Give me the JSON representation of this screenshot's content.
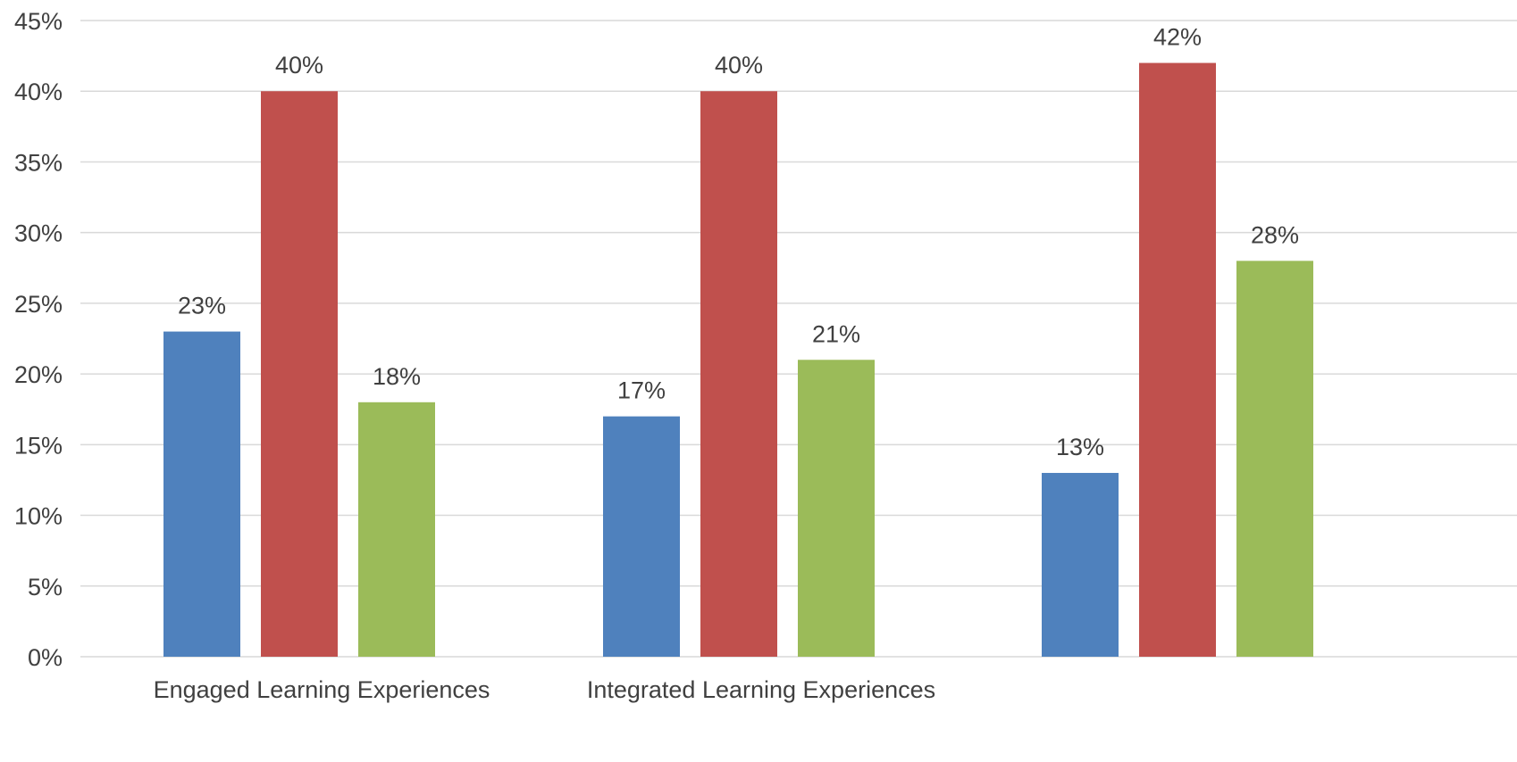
{
  "chart_data": {
    "type": "bar",
    "categories": [
      "Engaged Learning Experiences",
      "Integrated Learning Experiences",
      ""
    ],
    "series": [
      {
        "values": [
          23,
          17,
          13
        ],
        "color": "#4f81bd"
      },
      {
        "values": [
          40,
          40,
          42
        ],
        "color": "#c0504d"
      },
      {
        "values": [
          18,
          21,
          28
        ],
        "color": "#9bbb59"
      }
    ],
    "ylim": [
      0,
      45
    ],
    "y_ticks": [
      "0%",
      "5%",
      "10%",
      "15%",
      "20%",
      "25%",
      "30%",
      "35%",
      "40%",
      "45%"
    ],
    "data_labels": [
      [
        "23%",
        "17%",
        "13%"
      ],
      [
        "40%",
        "40%",
        "42%"
      ],
      [
        "18%",
        "21%",
        "28%"
      ]
    ],
    "grid": true,
    "legend": "none"
  }
}
